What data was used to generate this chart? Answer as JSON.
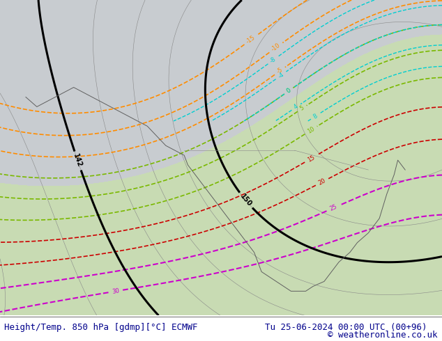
{
  "title_left": "Height/Temp. 850 hPa [gdmp][°C] ECMWF",
  "title_right": "Tu 25-06-2024 00:00 UTC (00+96)",
  "copyright": "© weatheronline.co.uk",
  "footer_text_color": "#00008B",
  "footer_font_size": 9,
  "fig_width": 6.34,
  "fig_height": 4.9,
  "dpi": 100,
  "map_bg_color": "#c8ccd0",
  "green_fill_color": "#c8e6a0",
  "green_region_alpha": 0.6,
  "contour_black_color": "#000000",
  "contour_black_linewidth": 2.2,
  "temp_red_color": "#cc0000",
  "temp_orange_color": "#ff8c00",
  "temp_green_color": "#7ab800",
  "temp_cyan_color": "#00ced1",
  "temp_magenta_color": "#cc00cc"
}
